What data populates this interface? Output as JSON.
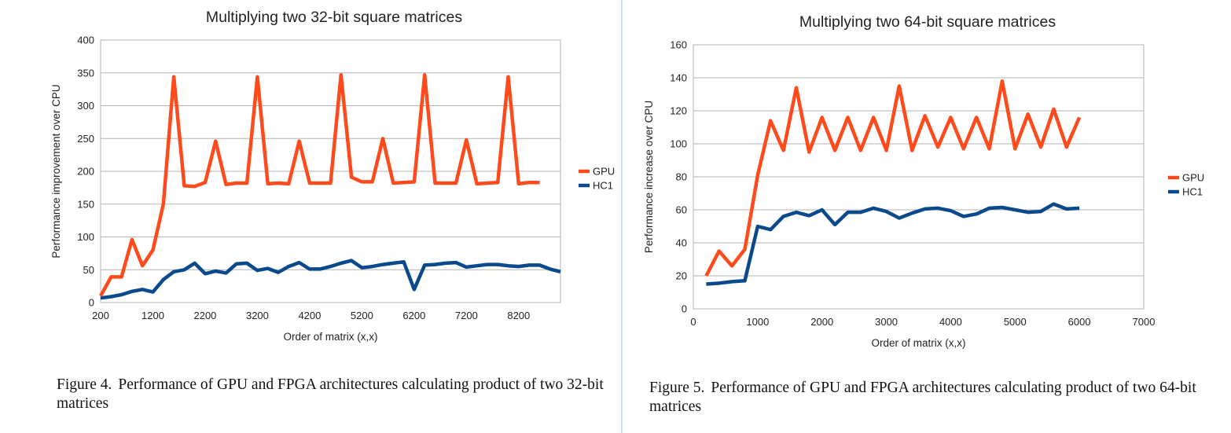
{
  "figures": [
    {
      "caption_label": "Figure 4.",
      "caption_text": "Performance of GPU and FPGA architectures calculating product of two 32-bit matrices"
    },
    {
      "caption_label": "Figure 5.",
      "caption_text": "Performance of GPU and FPGA architectures calculating product of two 64-bit matrices"
    }
  ],
  "chart_data": [
    {
      "type": "line",
      "title": "Multiplying two 32-bit square matrices",
      "xlabel": "Order of matrix (x,x)",
      "ylabel": "Performance improvement over CPU",
      "xlim": [
        200,
        9000
      ],
      "ylim": [
        0,
        400
      ],
      "x_ticks": [
        200,
        1200,
        2200,
        3200,
        4200,
        5200,
        6200,
        7200,
        8200
      ],
      "y_ticks": [
        0,
        50,
        100,
        150,
        200,
        250,
        300,
        350,
        400
      ],
      "grid": true,
      "legend": "right",
      "x": [
        200,
        400,
        600,
        800,
        1000,
        1200,
        1400,
        1600,
        1800,
        2000,
        2200,
        2400,
        2600,
        2800,
        3000,
        3200,
        3400,
        3600,
        3800,
        4000,
        4200,
        4400,
        4600,
        4800,
        5000,
        5200,
        5400,
        5600,
        5800,
        6000,
        6200,
        6400,
        6600,
        6800,
        7000,
        7200,
        7400,
        7600,
        7800,
        8000,
        8200,
        8400,
        8600,
        8800,
        9000
      ],
      "series": [
        {
          "name": "GPU",
          "color": "#ff4a1c",
          "values": [
            10,
            39,
            39,
            96,
            56,
            80,
            150,
            344,
            178,
            177,
            183,
            246,
            180,
            182,
            182,
            344,
            181,
            182,
            181,
            246,
            182,
            182,
            182,
            347,
            191,
            184,
            184,
            250,
            182,
            183,
            184,
            347,
            182,
            182,
            182,
            248,
            181,
            182,
            183,
            344,
            181,
            183,
            183,
            null,
            null
          ]
        },
        {
          "name": "HC1",
          "color": "#0a4a8c",
          "values": [
            7,
            9,
            12,
            17,
            20,
            16,
            35,
            47,
            50,
            60,
            44,
            48,
            45,
            59,
            60,
            49,
            52,
            46,
            55,
            61,
            51,
            51,
            55,
            60,
            64,
            53,
            55,
            58,
            60,
            62,
            20,
            57,
            58,
            60,
            61,
            54,
            56,
            58,
            58,
            56,
            55,
            57,
            57,
            51,
            47
          ]
        }
      ]
    },
    {
      "type": "line",
      "title": "Multiplying two 64-bit square matrices",
      "xlabel": "Order of matrix (x,x)",
      "ylabel": "Performance increase over CPU",
      "xlim": [
        0,
        7000
      ],
      "ylim": [
        0,
        160
      ],
      "x_ticks": [
        0,
        1000,
        2000,
        3000,
        4000,
        5000,
        6000,
        7000
      ],
      "y_ticks": [
        0,
        20,
        40,
        60,
        80,
        100,
        120,
        140,
        160
      ],
      "grid": true,
      "legend": "right",
      "x": [
        200,
        400,
        600,
        800,
        1000,
        1200,
        1400,
        1600,
        1800,
        2000,
        2200,
        2400,
        2600,
        2800,
        3000,
        3200,
        3400,
        3600,
        3800,
        4000,
        4200,
        4400,
        4600,
        4800,
        5000,
        5200,
        5400,
        5600,
        5800,
        6000
      ],
      "series": [
        {
          "name": "GPU",
          "color": "#ff4a1c",
          "values": [
            20,
            35,
            26,
            36,
            81,
            114,
            96,
            134,
            95,
            116,
            96,
            116,
            96,
            116,
            96,
            135,
            96,
            117,
            98,
            116,
            97,
            116,
            97,
            138,
            97,
            118,
            98,
            121,
            98,
            116
          ]
        },
        {
          "name": "HC1",
          "color": "#0a4a8c",
          "values": [
            15,
            15.5,
            16.5,
            17,
            50,
            48,
            56,
            58.5,
            56.5,
            60,
            51,
            58.5,
            58.5,
            61,
            59,
            55,
            58,
            60.5,
            61,
            59.5,
            56,
            57.5,
            61,
            61.5,
            60,
            58.5,
            59,
            63.5,
            60.5,
            61
          ]
        }
      ]
    }
  ]
}
